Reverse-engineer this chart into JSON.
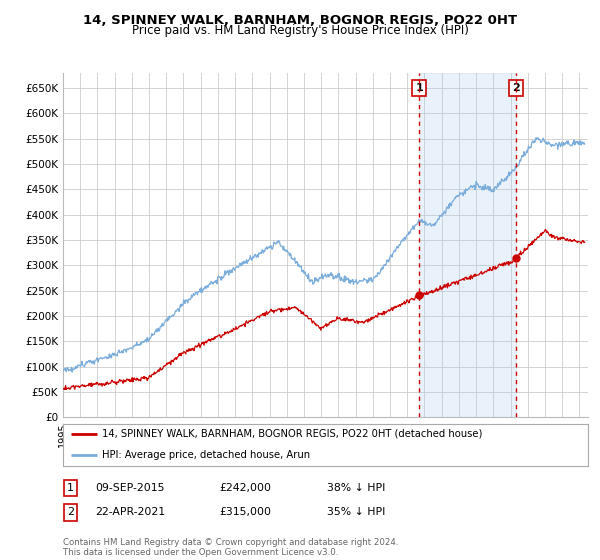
{
  "title_line1": "14, SPINNEY WALK, BARNHAM, BOGNOR REGIS, PO22 0HT",
  "title_line2": "Price paid vs. HM Land Registry's House Price Index (HPI)",
  "ylabel_ticks": [
    "£0",
    "£50K",
    "£100K",
    "£150K",
    "£200K",
    "£250K",
    "£300K",
    "£350K",
    "£400K",
    "£450K",
    "£500K",
    "£550K",
    "£600K",
    "£650K"
  ],
  "ytick_vals": [
    0,
    50000,
    100000,
    150000,
    200000,
    250000,
    300000,
    350000,
    400000,
    450000,
    500000,
    550000,
    600000,
    650000
  ],
  "ylim": [
    0,
    680000
  ],
  "xlim_start": 1995.0,
  "xlim_end": 2025.5,
  "red_color": "#cc0000",
  "blue_color": "#7aaddb",
  "shade_color": "#ddeeff",
  "annotation_box_color": "#cc0000",
  "grid_color": "#cccccc",
  "background_color": "#ffffff",
  "transaction1": {
    "label": "1",
    "date": "09-SEP-2015",
    "price": 242000,
    "hpi_pct": "38% ↓ HPI",
    "x": 2015.69
  },
  "transaction2": {
    "label": "2",
    "date": "22-APR-2021",
    "price": 315000,
    "hpi_pct": "35% ↓ HPI",
    "x": 2021.31
  },
  "legend_line1": "14, SPINNEY WALK, BARNHAM, BOGNOR REGIS, PO22 0HT (detached house)",
  "legend_line2": "HPI: Average price, detached house, Arun",
  "footnote": "Contains HM Land Registry data © Crown copyright and database right 2024.\nThis data is licensed under the Open Government Licence v3.0.",
  "dotted_x1": 2015.69,
  "dotted_x2": 2021.31
}
